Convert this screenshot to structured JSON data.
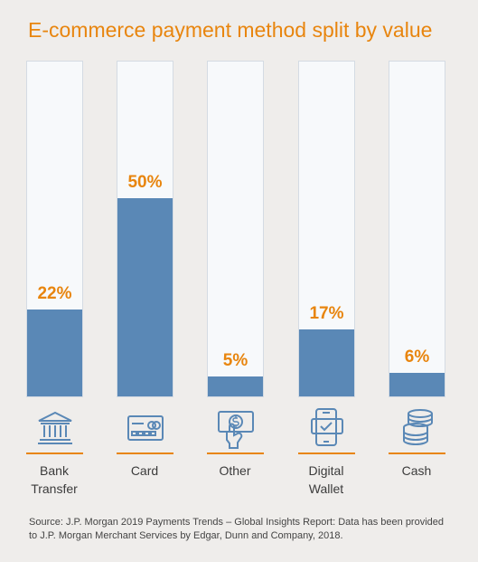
{
  "title": "E-commerce payment method split by value",
  "source": "Source: J.P. Morgan 2019 Payments Trends – Global Insights Report: Data has been provided to J.P. Morgan Merchant Services by Edgar, Dunn and Company, 2018.",
  "colors": {
    "accent": "#e8850e",
    "bar": "#5a88b6",
    "track": "#f7f9fb",
    "background": "#efedeb"
  },
  "chart_data": {
    "type": "bar",
    "title": "E-commerce payment method split by value",
    "categories": [
      "Bank Transfer",
      "Card",
      "Other",
      "Digital Wallet",
      "Cash"
    ],
    "category_lines": [
      [
        "Bank",
        "Transfer"
      ],
      [
        "Card"
      ],
      [
        "Other"
      ],
      [
        "Digital",
        "Wallet"
      ],
      [
        "Cash"
      ]
    ],
    "values": [
      22,
      50,
      5,
      17,
      6
    ],
    "value_labels": [
      "22%",
      "50%",
      "5%",
      "17%",
      "6%"
    ],
    "icons": [
      "bank-icon",
      "card-icon",
      "cash-in-hand-icon",
      "phone-wallet-icon",
      "coin-stack-icon"
    ],
    "ylim": [
      0,
      85
    ],
    "grid": false
  }
}
